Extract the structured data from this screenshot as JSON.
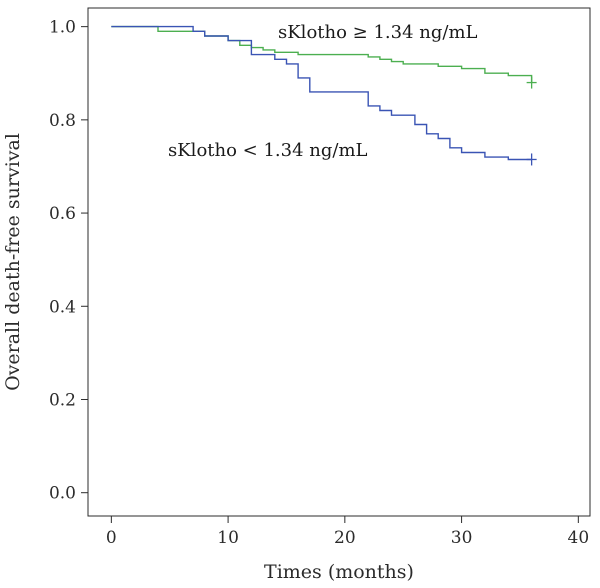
{
  "chart_data": {
    "type": "line",
    "title": "",
    "xlabel": "Times (months)",
    "ylabel": "Overall death-free survival",
    "xlim": [
      -2,
      41
    ],
    "ylim": [
      -0.05,
      1.04
    ],
    "xticks": [
      0,
      10,
      20,
      30,
      40
    ],
    "yticks": [
      0.0,
      0.2,
      0.4,
      0.6,
      0.8,
      1.0
    ],
    "xtick_labels": [
      "0",
      "10",
      "20",
      "30",
      "40"
    ],
    "ytick_labels": [
      "0.0",
      "0.2",
      "0.4",
      "0.6",
      "0.8",
      "1.0"
    ],
    "grid": false,
    "step": true,
    "series": [
      {
        "name": "sKlotho ≥ 1.34 ng/mL",
        "color": "#4caf50",
        "x": [
          0,
          4,
          8,
          10,
          11,
          12,
          13,
          14,
          16,
          22,
          23,
          24,
          25,
          28,
          30,
          32,
          34,
          36
        ],
        "y": [
          1.0,
          0.99,
          0.98,
          0.97,
          0.96,
          0.955,
          0.95,
          0.945,
          0.94,
          0.935,
          0.93,
          0.925,
          0.92,
          0.915,
          0.91,
          0.9,
          0.895,
          0.88
        ],
        "censor_x": [
          36
        ],
        "censor_y": [
          0.88
        ]
      },
      {
        "name": "sKlotho < 1.34 ng/mL",
        "color": "#3a54b4",
        "x": [
          0,
          7,
          8,
          10,
          12,
          14,
          15,
          16,
          17,
          20,
          22,
          23,
          24,
          26,
          27,
          28,
          29,
          30,
          32,
          34,
          36
        ],
        "y": [
          1.0,
          0.99,
          0.98,
          0.97,
          0.94,
          0.93,
          0.92,
          0.89,
          0.86,
          0.86,
          0.83,
          0.82,
          0.81,
          0.79,
          0.77,
          0.76,
          0.74,
          0.73,
          0.72,
          0.715,
          0.715
        ],
        "censor_x": [
          36
        ],
        "censor_y": [
          0.715
        ]
      }
    ]
  }
}
